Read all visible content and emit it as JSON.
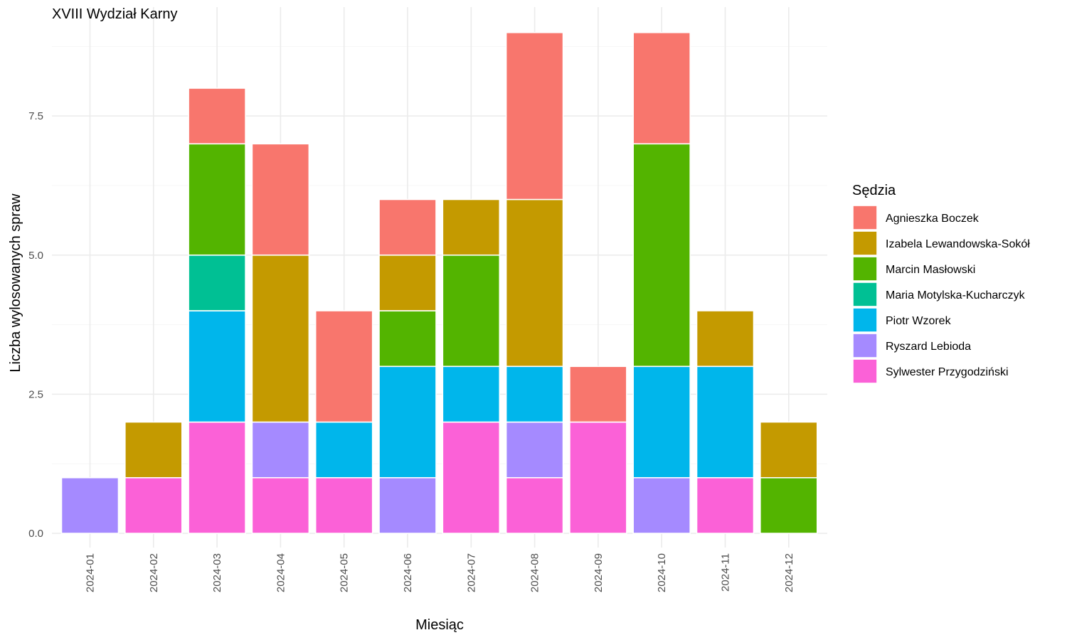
{
  "chart_data": {
    "type": "bar",
    "stacked": true,
    "title": "XVIII Wydział Karny",
    "xlabel": "Miesiąc",
    "ylabel": "Liczba wylosowanych spraw",
    "ylim": [
      0,
      9
    ],
    "yticks": [
      "0.0",
      "2.5",
      "5.0",
      "7.5"
    ],
    "yticks_values": [
      0,
      2.5,
      5,
      7.5
    ],
    "grid": true,
    "legend": {
      "title": "Sędzia",
      "position": "right"
    },
    "categories": [
      "2024-01",
      "2024-02",
      "2024-03",
      "2024-04",
      "2024-05",
      "2024-06",
      "2024-07",
      "2024-08",
      "2024-09",
      "2024-10",
      "2024-11",
      "2024-12"
    ],
    "series": [
      {
        "name": "Sylwester Przygodziński",
        "color": "#FB61D7",
        "values": [
          0,
          1,
          2,
          1,
          1,
          0,
          2,
          1,
          2,
          0,
          1,
          0
        ]
      },
      {
        "name": "Ryszard Lebioda",
        "color": "#A58AFF",
        "values": [
          1,
          0,
          0,
          1,
          0,
          1,
          0,
          1,
          0,
          1,
          0,
          0
        ]
      },
      {
        "name": "Piotr Wzorek",
        "color": "#00B6EB",
        "values": [
          0,
          0,
          2,
          0,
          1,
          2,
          1,
          1,
          0,
          2,
          2,
          0
        ]
      },
      {
        "name": "Maria Motylska-Kucharczyk",
        "color": "#00C094",
        "values": [
          0,
          0,
          1,
          0,
          0,
          0,
          0,
          0,
          0,
          0,
          0,
          0
        ]
      },
      {
        "name": "Marcin Masłowski",
        "color": "#53B400",
        "values": [
          0,
          0,
          2,
          0,
          0,
          1,
          2,
          0,
          0,
          4,
          0,
          1
        ]
      },
      {
        "name": "Izabela Lewandowska-Sokół",
        "color": "#C49A00",
        "values": [
          0,
          1,
          0,
          3,
          0,
          1,
          1,
          3,
          0,
          0,
          1,
          1
        ]
      },
      {
        "name": "Agnieszka Boczek",
        "color": "#F8766D",
        "values": [
          0,
          0,
          1,
          2,
          2,
          1,
          0,
          3,
          1,
          2,
          0,
          0
        ]
      }
    ],
    "legend_order": [
      "Agnieszka Boczek",
      "Izabela Lewandowska-Sokół",
      "Marcin Masłowski",
      "Maria Motylska-Kucharczyk",
      "Piotr Wzorek",
      "Ryszard Lebioda",
      "Sylwester Przygodziński"
    ]
  }
}
